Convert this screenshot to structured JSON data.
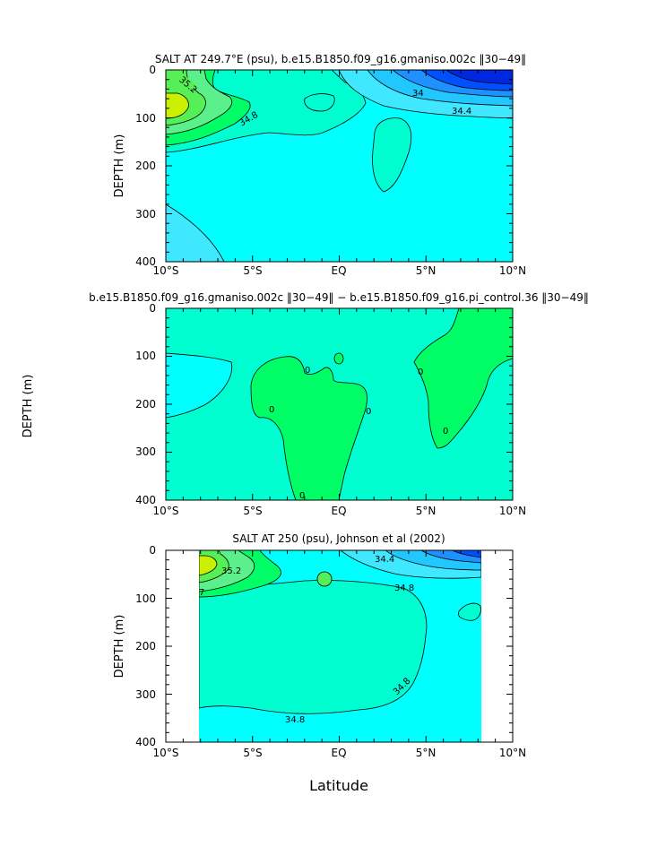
{
  "figure": {
    "xlabel": "Latitude"
  },
  "colors": {
    "green_bright": "#55f055",
    "green": "#00ff66",
    "green_light": "#5cf08c",
    "yellow_green": "#c8f000",
    "teal": "#00ffd0",
    "cyan": "#00ffff",
    "cyan_light": "#40e8ff",
    "blue_mid": "#20c8ff",
    "blue": "#1e90ff",
    "blue_deep": "#0050ff",
    "blue_dark": "#0028e0",
    "contour_line": "#000000"
  },
  "chart_data": [
    {
      "type": "heatmap",
      "title": "SALT AT 249.7°E (psu), b.e15.B1850.f09_g16.gmaniso.002c ‖30−49‖",
      "xlabel": "",
      "ylabel": "DEPTH (m)",
      "x_ticks": [
        "10°S",
        "5°S",
        "EQ",
        "5°N",
        "10°N"
      ],
      "y_ticks": [
        "0",
        "100",
        "200",
        "300",
        "400"
      ],
      "xlim": [
        -10,
        10
      ],
      "ylim": [
        400,
        0
      ],
      "contour_labels": [
        "35.2",
        "34.8",
        "34",
        "34.4"
      ]
    },
    {
      "type": "heatmap",
      "title": "b.e15.B1850.f09_g16.gmaniso.002c ‖30−49‖ − b.e15.B1850.f09_g16.pi_control.36 ‖30−49‖",
      "xlabel": "",
      "ylabel": "DEPTH (m)",
      "x_ticks": [
        "10°S",
        "5°S",
        "EQ",
        "5°N",
        "10°N"
      ],
      "y_ticks": [
        "0",
        "100",
        "200",
        "300",
        "400"
      ],
      "xlim": [
        -10,
        10
      ],
      "ylim": [
        400,
        0
      ],
      "contour_labels": [
        "0",
        "0",
        "0",
        "0",
        "0",
        "0"
      ]
    },
    {
      "type": "heatmap",
      "title": "SALT AT 250 (psu), Johnson et al (2002)",
      "xlabel": "Latitude",
      "ylabel": "DEPTH (m)",
      "x_ticks": [
        "10°S",
        "5°S",
        "EQ",
        "5°N",
        "10°N"
      ],
      "y_ticks": [
        "0",
        "100",
        "200",
        "300",
        "400"
      ],
      "xlim": [
        -10,
        10
      ],
      "ylim": [
        400,
        0
      ],
      "data_xrange": [
        -8,
        8.2
      ],
      "contour_labels": [
        "35.2",
        "34.4",
        "34.8",
        "34.8",
        "34.8",
        "7"
      ]
    }
  ]
}
